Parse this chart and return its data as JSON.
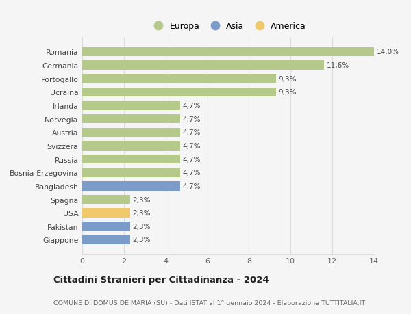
{
  "categories": [
    "Giappone",
    "Pakistan",
    "USA",
    "Spagna",
    "Bangladesh",
    "Bosnia-Erzegovina",
    "Russia",
    "Svizzera",
    "Austria",
    "Norvegia",
    "Irlanda",
    "Ucraina",
    "Portogallo",
    "Germania",
    "Romania"
  ],
  "values": [
    2.3,
    2.3,
    2.3,
    2.3,
    4.7,
    4.7,
    4.7,
    4.7,
    4.7,
    4.7,
    4.7,
    9.3,
    9.3,
    11.6,
    14.0
  ],
  "colors": [
    "#7b9bc8",
    "#7b9bc8",
    "#f0c96a",
    "#b5c98a",
    "#7b9bc8",
    "#b5c98a",
    "#b5c98a",
    "#b5c98a",
    "#b5c98a",
    "#b5c98a",
    "#b5c98a",
    "#b5c98a",
    "#b5c98a",
    "#b5c98a",
    "#b5c98a"
  ],
  "labels": [
    "2,3%",
    "2,3%",
    "2,3%",
    "2,3%",
    "4,7%",
    "4,7%",
    "4,7%",
    "4,7%",
    "4,7%",
    "4,7%",
    "4,7%",
    "9,3%",
    "9,3%",
    "11,6%",
    "14,0%"
  ],
  "legend_labels": [
    "Europa",
    "Asia",
    "America"
  ],
  "legend_colors": [
    "#b5c98a",
    "#7b9bc8",
    "#f0c96a"
  ],
  "title": "Cittadini Stranieri per Cittadinanza - 2024",
  "subtitle": "COMUNE DI DOMUS DE MARIA (SU) - Dati ISTAT al 1° gennaio 2024 - Elaborazione TUTTITALIA.IT",
  "xlim": [
    0,
    14
  ],
  "xticks": [
    0,
    2,
    4,
    6,
    8,
    10,
    12,
    14
  ],
  "bg_color": "#f5f5f5",
  "plot_bg_color": "#f5f5f5",
  "grid_color": "#dddddd",
  "bar_height": 0.68
}
